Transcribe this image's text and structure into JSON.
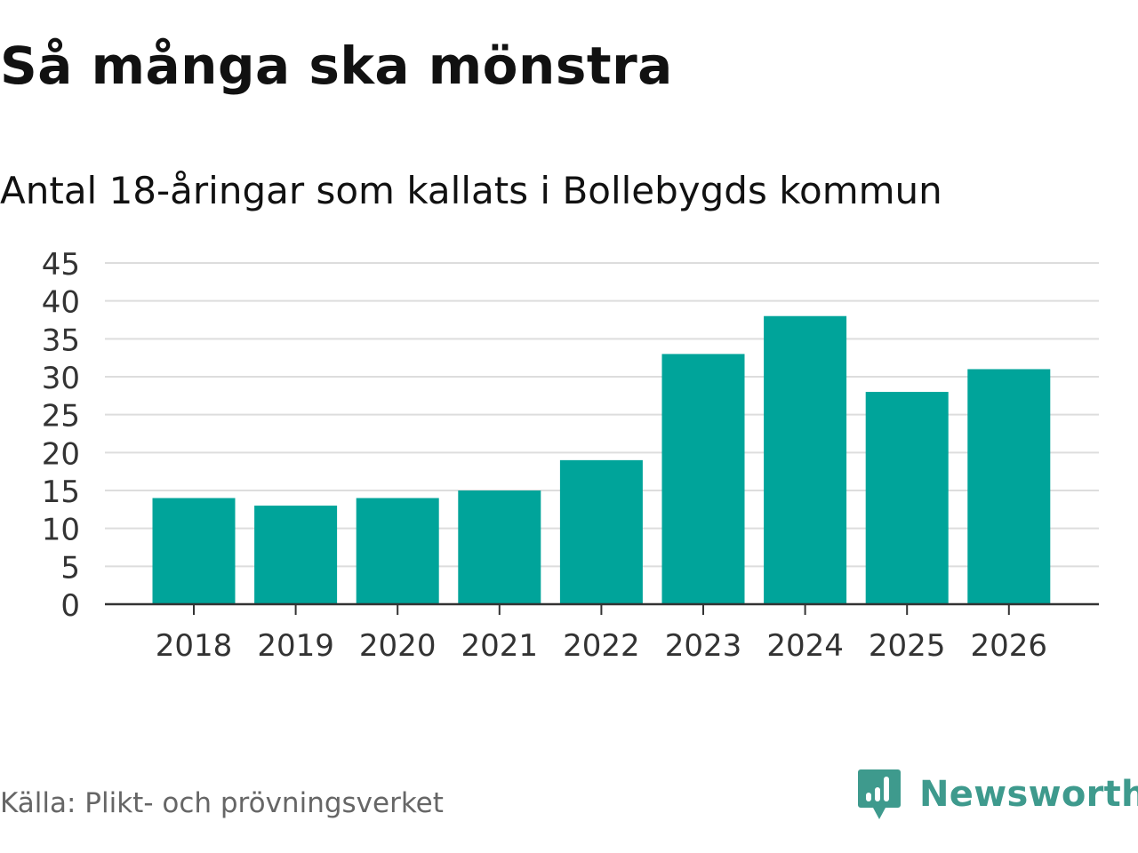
{
  "title": "Så många ska mönstra",
  "subtitle": "Antal 18-åringar som kallats i Bollebygds kommun",
  "source": "Källa: Plikt- och prövningsverket",
  "logo": {
    "text": "Newsworthy",
    "icon": "newsworthy-logo-icon",
    "color": "#3e9a8d"
  },
  "colors": {
    "bar": "#00a49a",
    "grid": "#dddddd",
    "axis": "#333333",
    "text": "#333333"
  },
  "chart_data": {
    "type": "bar",
    "title": "Så många ska mönstra",
    "subtitle": "Antal 18-åringar som kallats i Bollebygds kommun",
    "xlabel": "",
    "ylabel": "",
    "categories": [
      "2018",
      "2019",
      "2020",
      "2021",
      "2022",
      "2023",
      "2024",
      "2025",
      "2026"
    ],
    "values": [
      14,
      13,
      14,
      15,
      19,
      33,
      38,
      28,
      31
    ],
    "ylim": [
      0,
      45
    ],
    "yticks": [
      0,
      5,
      10,
      15,
      20,
      25,
      30,
      35,
      40,
      45
    ],
    "grid": true,
    "legend": "none"
  }
}
